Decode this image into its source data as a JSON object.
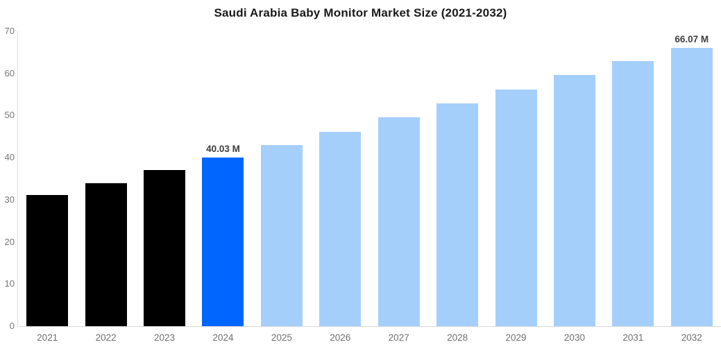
{
  "chart_data": {
    "type": "bar",
    "title": "Saudi Arabia Baby Monitor Market Size (2021-2032)",
    "categories": [
      "2021",
      "2022",
      "2023",
      "2024",
      "2025",
      "2026",
      "2027",
      "2028",
      "2029",
      "2030",
      "2031",
      "2032"
    ],
    "values": [
      31.2,
      34.0,
      37.0,
      40.03,
      43.0,
      46.2,
      49.5,
      52.9,
      56.2,
      59.6,
      63.0,
      66.07
    ],
    "unit": "M",
    "bar_colors": [
      "#000000",
      "#000000",
      "#000000",
      "#0066ff",
      "#a5cffb",
      "#a5cffb",
      "#a5cffb",
      "#a5cffb",
      "#a5cffb",
      "#a5cffb",
      "#a5cffb",
      "#a5cffb"
    ],
    "annotations": [
      {
        "category": "2024",
        "text": "40.03 M"
      },
      {
        "category": "2032",
        "text": "66.07 M"
      }
    ],
    "xlabel": "",
    "ylabel": "",
    "ylim": [
      0,
      70
    ],
    "yticks": [
      0,
      10,
      20,
      30,
      40,
      50,
      60,
      70
    ],
    "grid": false,
    "legend_position": "none",
    "colors": {
      "highlight_bar": "#0066ff",
      "historical_bar": "#000000",
      "forecast_bar": "#a5cffb",
      "axis_line": "#d9d9d9",
      "tick_text": "#6e6e6e",
      "value_label_text": "#3d3d3d",
      "title_text": "#1a1a1a"
    }
  }
}
